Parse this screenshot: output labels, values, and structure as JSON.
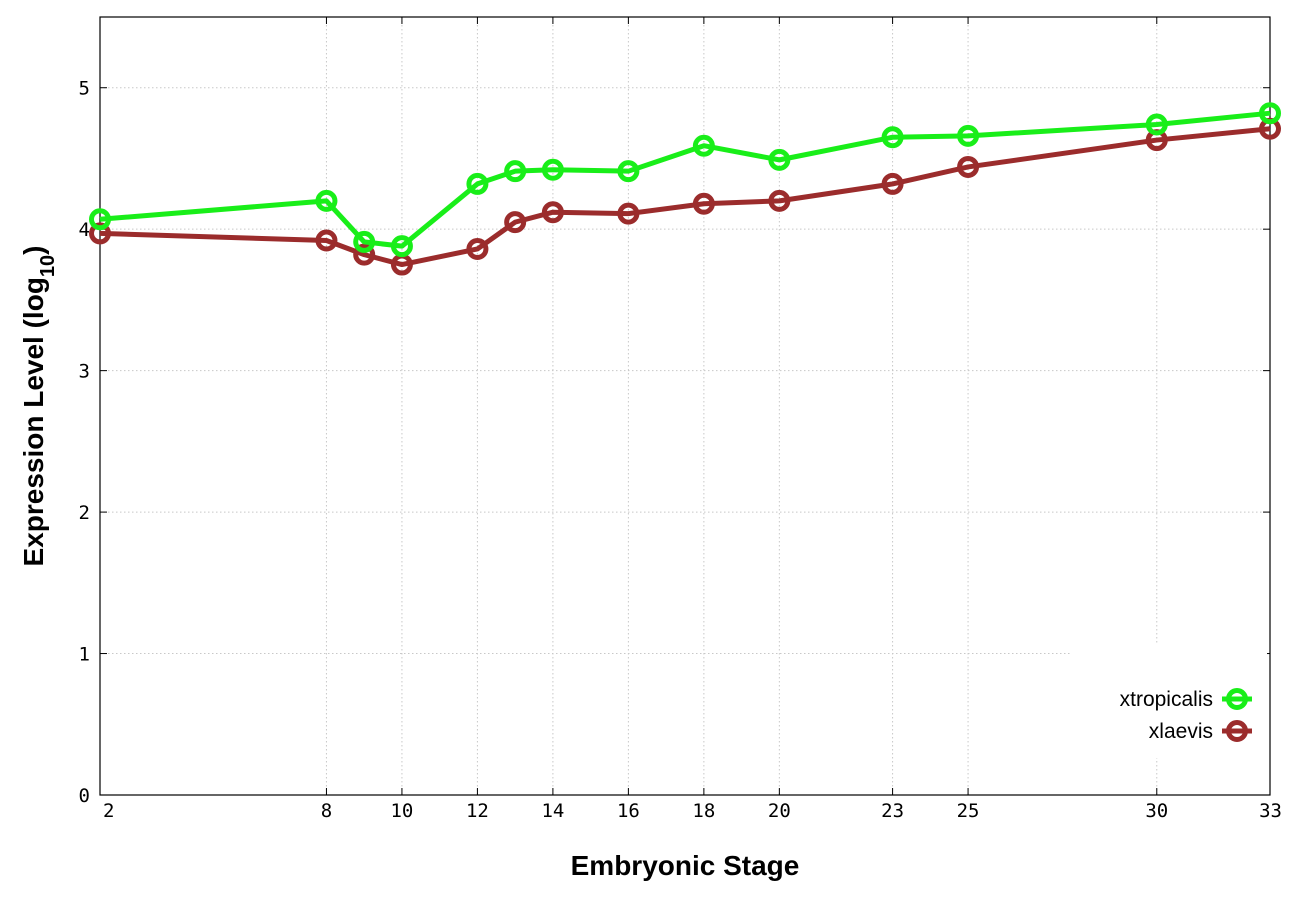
{
  "chart_data": {
    "type": "line",
    "xlabel": "Embryonic Stage",
    "ylabel_main": "Expression Level (log",
    "ylabel_sub": "10",
    "ylabel_close": ")",
    "xlim": [
      2,
      33
    ],
    "ylim": [
      0,
      5.5
    ],
    "xticks": [
      2,
      8,
      10,
      12,
      14,
      16,
      18,
      20,
      23,
      25,
      30,
      33
    ],
    "yticks": [
      0,
      1,
      2,
      3,
      4,
      5
    ],
    "grid": true,
    "legend_position": "bottom-right",
    "x": [
      2,
      8,
      9,
      10,
      12,
      13,
      14,
      16,
      18,
      20,
      23,
      25,
      30,
      33
    ],
    "series": [
      {
        "name": "xtropicalis",
        "color": "#19ee19",
        "values": [
          4.07,
          4.2,
          3.91,
          3.88,
          4.32,
          4.41,
          4.42,
          4.41,
          4.59,
          4.49,
          4.65,
          4.66,
          4.74,
          4.82
        ]
      },
      {
        "name": "xlaevis",
        "color": "#9b2c2c",
        "values": [
          3.97,
          3.92,
          3.82,
          3.75,
          3.86,
          4.05,
          4.12,
          4.11,
          4.18,
          4.2,
          4.32,
          4.44,
          4.63,
          4.71
        ]
      }
    ]
  }
}
